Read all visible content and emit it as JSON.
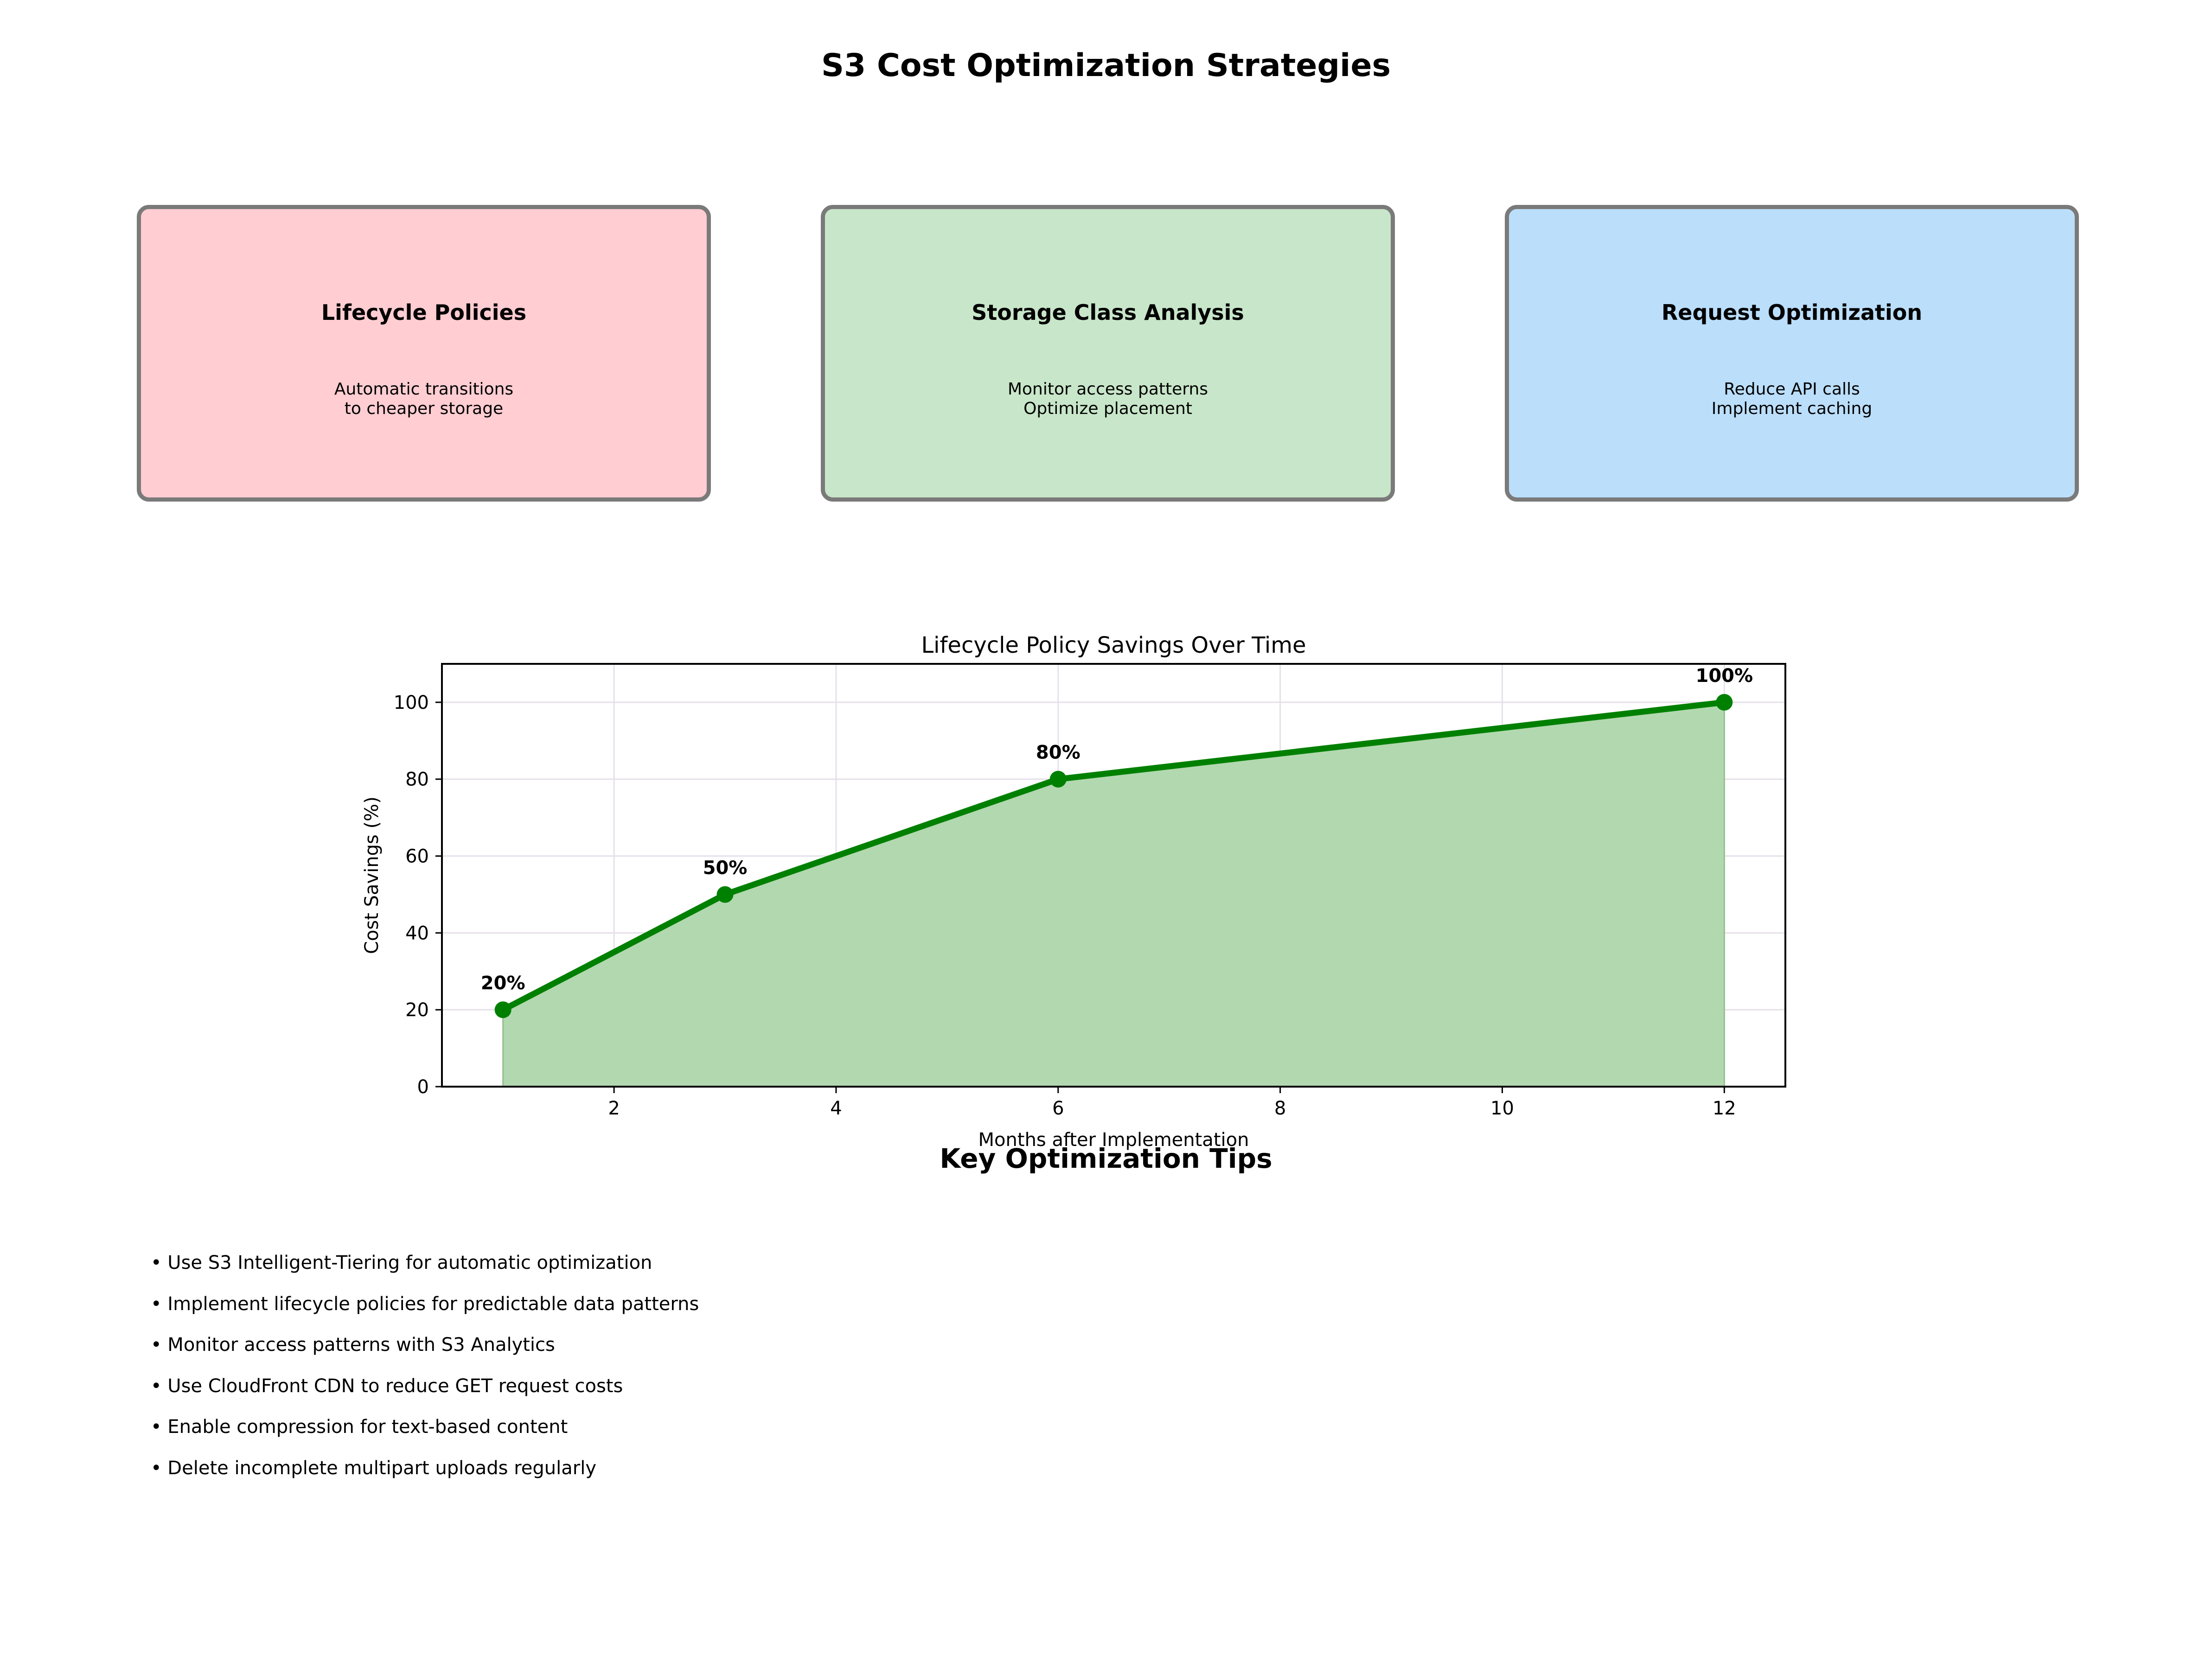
{
  "title": "S3 Cost Optimization Strategies",
  "cards": [
    {
      "title": "Lifecycle Policies",
      "lines": [
        "Automatic transitions",
        "to cheaper storage"
      ],
      "color": "#ffcdd2"
    },
    {
      "title": "Storage Class Analysis",
      "lines": [
        "Monitor access patterns",
        "Optimize placement"
      ],
      "color": "#c8e6c9"
    },
    {
      "title": "Request Optimization",
      "lines": [
        "Reduce API calls",
        "Implement caching"
      ],
      "color": "#bbdefb"
    }
  ],
  "chart_data": {
    "type": "area",
    "title": "Lifecycle Policy Savings Over Time",
    "xlabel": "Months after Implementation",
    "ylabel": "Cost Savings (%)",
    "x": [
      1,
      3,
      6,
      12
    ],
    "y": [
      20,
      50,
      80,
      100
    ],
    "point_labels": [
      "20%",
      "50%",
      "80%",
      "100%"
    ],
    "xlim": [
      0.45,
      12.55
    ],
    "ylim": [
      0,
      110
    ],
    "xticks": [
      2,
      4,
      6,
      8,
      10,
      12
    ],
    "yticks": [
      0,
      20,
      40,
      60,
      80,
      100
    ],
    "grid": true,
    "line_color": "#008000",
    "fill_color": "#b2d8b0"
  },
  "tips": {
    "title": "Key Optimization Tips",
    "items": [
      "• Use S3 Intelligent-Tiering for automatic optimization",
      "• Implement lifecycle policies for predictable data patterns",
      "• Monitor access patterns with S3 Analytics",
      "• Use CloudFront CDN to reduce GET request costs",
      "• Enable compression for text-based content",
      "• Delete incomplete multipart uploads regularly"
    ]
  }
}
